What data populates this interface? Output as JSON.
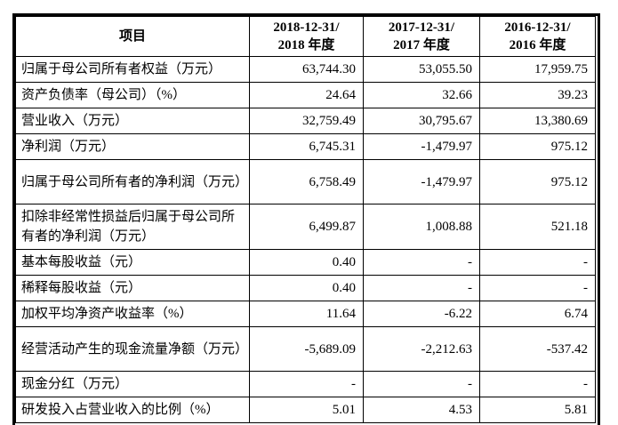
{
  "table": {
    "item_header": "项目",
    "period_columns": [
      {
        "line1": "2018-12-31/",
        "line2": "2018 年度"
      },
      {
        "line1": "2017-12-31/",
        "line2": "2017 年度"
      },
      {
        "line1": "2016-12-31/",
        "line2": "2016 年度"
      }
    ],
    "rows": [
      {
        "label": "归属于母公司所有者权益（万元）",
        "values": [
          "63,744.30",
          "53,055.50",
          "17,959.75"
        ]
      },
      {
        "label": "资产负债率（母公司）（%）",
        "values": [
          "24.64",
          "32.66",
          "39.23"
        ]
      },
      {
        "label": "营业收入（万元）",
        "values": [
          "32,759.49",
          "30,795.67",
          "13,380.69"
        ]
      },
      {
        "label": "净利润（万元）",
        "values": [
          "6,745.31",
          "-1,479.97",
          "975.12"
        ]
      },
      {
        "label": "归属于母公司所有者的净利润（万元）",
        "values": [
          "6,758.49",
          "-1,479.97",
          "975.12"
        ]
      },
      {
        "label": "扣除非经常性损益后归属于母公司所有者的净利润（万元）",
        "values": [
          "6,499.87",
          "1,008.88",
          "521.18"
        ]
      },
      {
        "label": "基本每股收益（元）",
        "values": [
          "0.40",
          "-",
          "-"
        ]
      },
      {
        "label": "稀释每股收益（元）",
        "values": [
          "0.40",
          "-",
          "-"
        ]
      },
      {
        "label": "加权平均净资产收益率（%）",
        "values": [
          "11.64",
          "-6.22",
          "6.74"
        ]
      },
      {
        "label": "经营活动产生的现金流量净额（万元）",
        "values": [
          "-5,689.09",
          "-2,212.63",
          "-537.42"
        ]
      },
      {
        "label": "现金分红（万元）",
        "values": [
          "-",
          "-",
          "-"
        ]
      },
      {
        "label": "研发投入占营业收入的比例（%）",
        "values": [
          "5.01",
          "4.53",
          "5.81"
        ]
      }
    ],
    "colors": {
      "border": "#000000",
      "text": "#000000",
      "background": "#ffffff"
    }
  }
}
